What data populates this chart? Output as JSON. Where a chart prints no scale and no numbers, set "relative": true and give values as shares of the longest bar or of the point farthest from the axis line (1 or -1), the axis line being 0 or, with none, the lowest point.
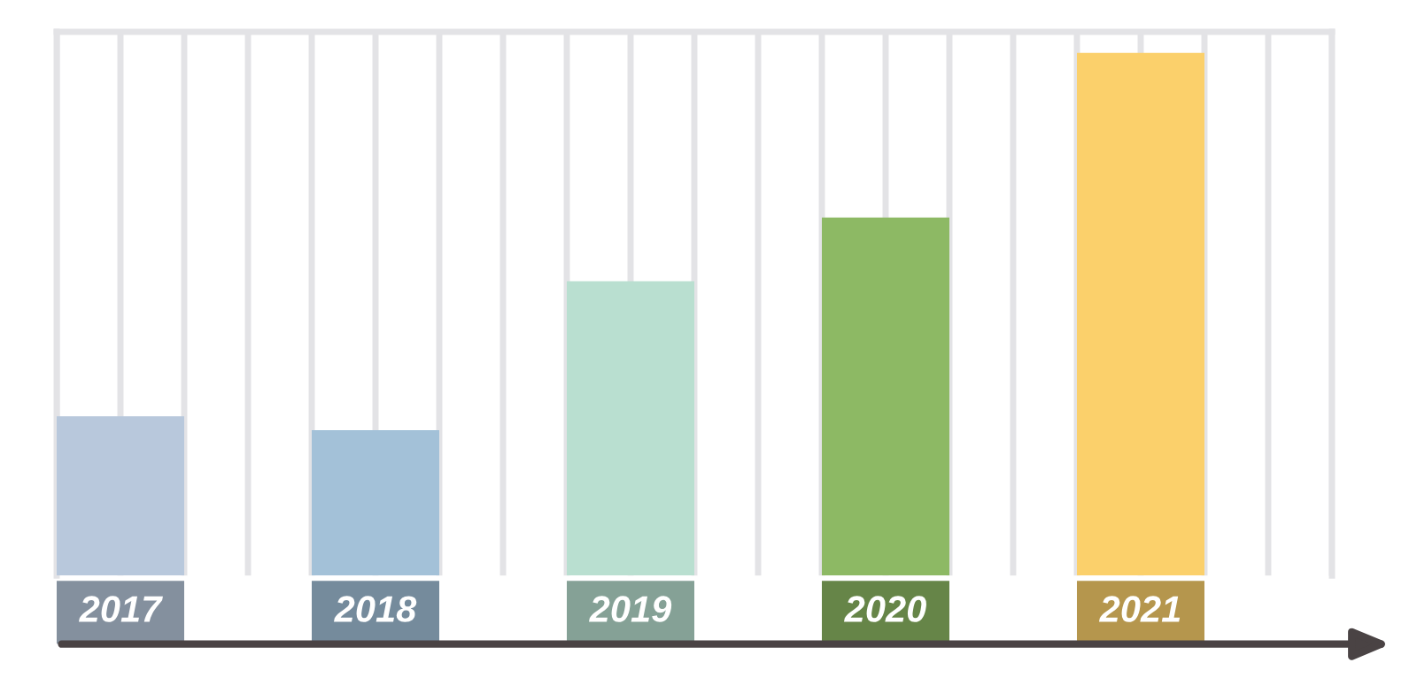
{
  "chart_data": {
    "type": "bar",
    "relative": true,
    "grid": true,
    "categories": [
      "2017",
      "2018",
      "2019",
      "2020",
      "2021"
    ],
    "values": [
      0.305,
      0.278,
      0.563,
      0.685,
      1
    ],
    "colors": [
      "#b8c8dc",
      "#a3c1d8",
      "#b9dfd0",
      "#8db964",
      "#fbd06b"
    ]
  }
}
